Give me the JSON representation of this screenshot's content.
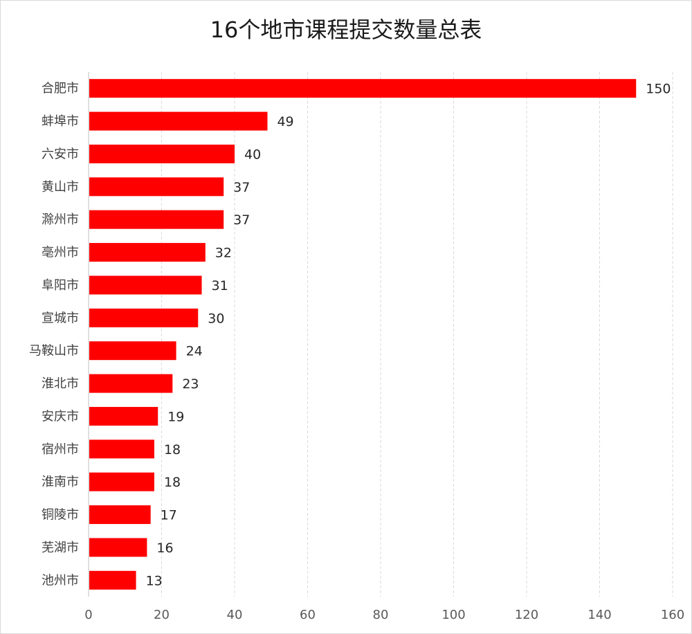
{
  "chart_data": {
    "type": "bar",
    "orientation": "horizontal",
    "title": "16个地市课程提交数量总表",
    "categories": [
      "合肥市",
      "蚌埠市",
      "六安市",
      "黄山市",
      "滁州市",
      "亳州市",
      "阜阳市",
      "宣城市",
      "马鞍山市",
      "淮北市",
      "安庆市",
      "宿州市",
      "淮南市",
      "铜陵市",
      "芜湖市",
      "池州市"
    ],
    "values": [
      150,
      49,
      40,
      37,
      37,
      32,
      31,
      30,
      24,
      23,
      19,
      18,
      18,
      17,
      16,
      13
    ],
    "xlim": [
      0,
      160
    ],
    "xticks": [
      0,
      20,
      40,
      60,
      80,
      100,
      120,
      140,
      160
    ],
    "grid": "vertical-dashed",
    "legend": "none",
    "bar_color": "#ff0000"
  }
}
